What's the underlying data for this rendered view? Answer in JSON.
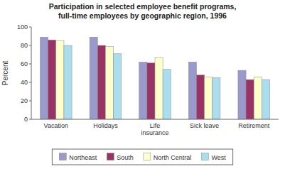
{
  "chart_data": {
    "type": "bar",
    "title": "Participation in selected employee benefit programs,\nfull-time employees by geographic region, 1996",
    "y_label": "Percent",
    "categories": [
      "Vacation",
      "Holidays",
      "Life\ninsurance",
      "Sick leave",
      "Retirement"
    ],
    "series": [
      {
        "name": "Northeast",
        "color": "#9999cc",
        "values": [
          89,
          89,
          62,
          62,
          53
        ]
      },
      {
        "name": "South",
        "color": "#993366",
        "values": [
          86,
          80,
          61,
          48,
          43
        ]
      },
      {
        "name": "North Central",
        "color": "#ffffcc",
        "values": [
          85,
          79,
          67,
          46,
          46
        ]
      },
      {
        "name": "West",
        "color": "#aaddee",
        "values": [
          80,
          71,
          54,
          45,
          43
        ]
      }
    ],
    "ylim": [
      0,
      100
    ],
    "yticks": [
      0,
      20,
      40,
      60,
      80,
      100
    ],
    "grid": false,
    "legend": "bottom"
  }
}
